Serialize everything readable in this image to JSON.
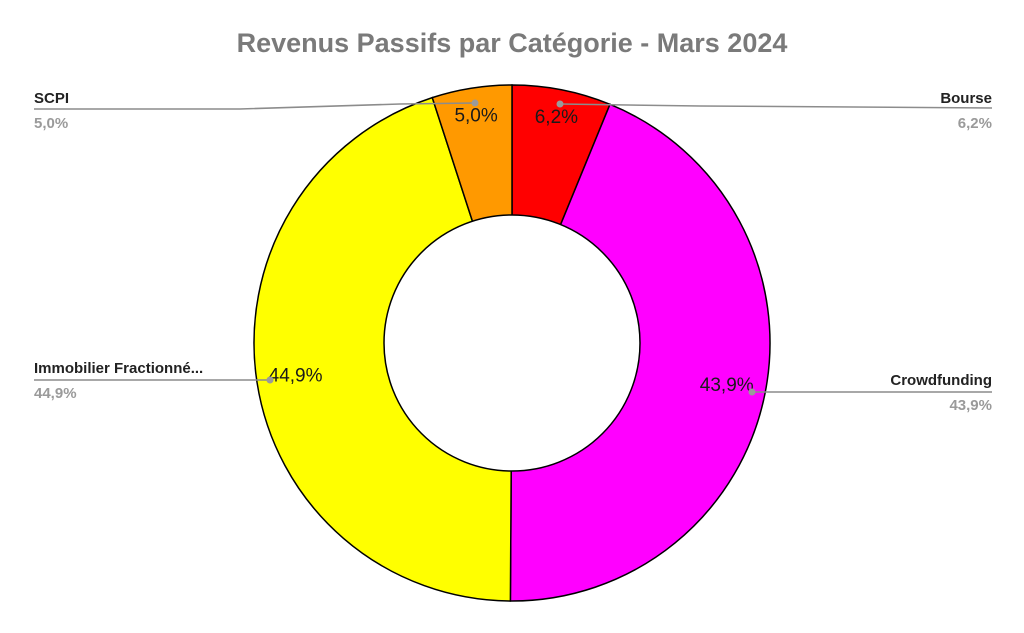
{
  "chart_data": {
    "type": "pie",
    "title": "Revenus Passifs par Catégorie - Mars 2024",
    "donut": true,
    "start_angle_deg": 0,
    "direction": "clockwise",
    "slices": [
      {
        "name": "Bourse",
        "value": 6.2,
        "label": "6,2%",
        "color": "#ff0000"
      },
      {
        "name": "Crowdfunding",
        "value": 43.9,
        "label": "43,9%",
        "color": "#ff00ff"
      },
      {
        "name": "Immobilier Fractionné...",
        "value": 44.9,
        "label": "44,9%",
        "color": "#ffff00"
      },
      {
        "name": "SCPI",
        "value": 5.0,
        "label": "5,0%",
        "color": "#ff9900"
      }
    ]
  }
}
